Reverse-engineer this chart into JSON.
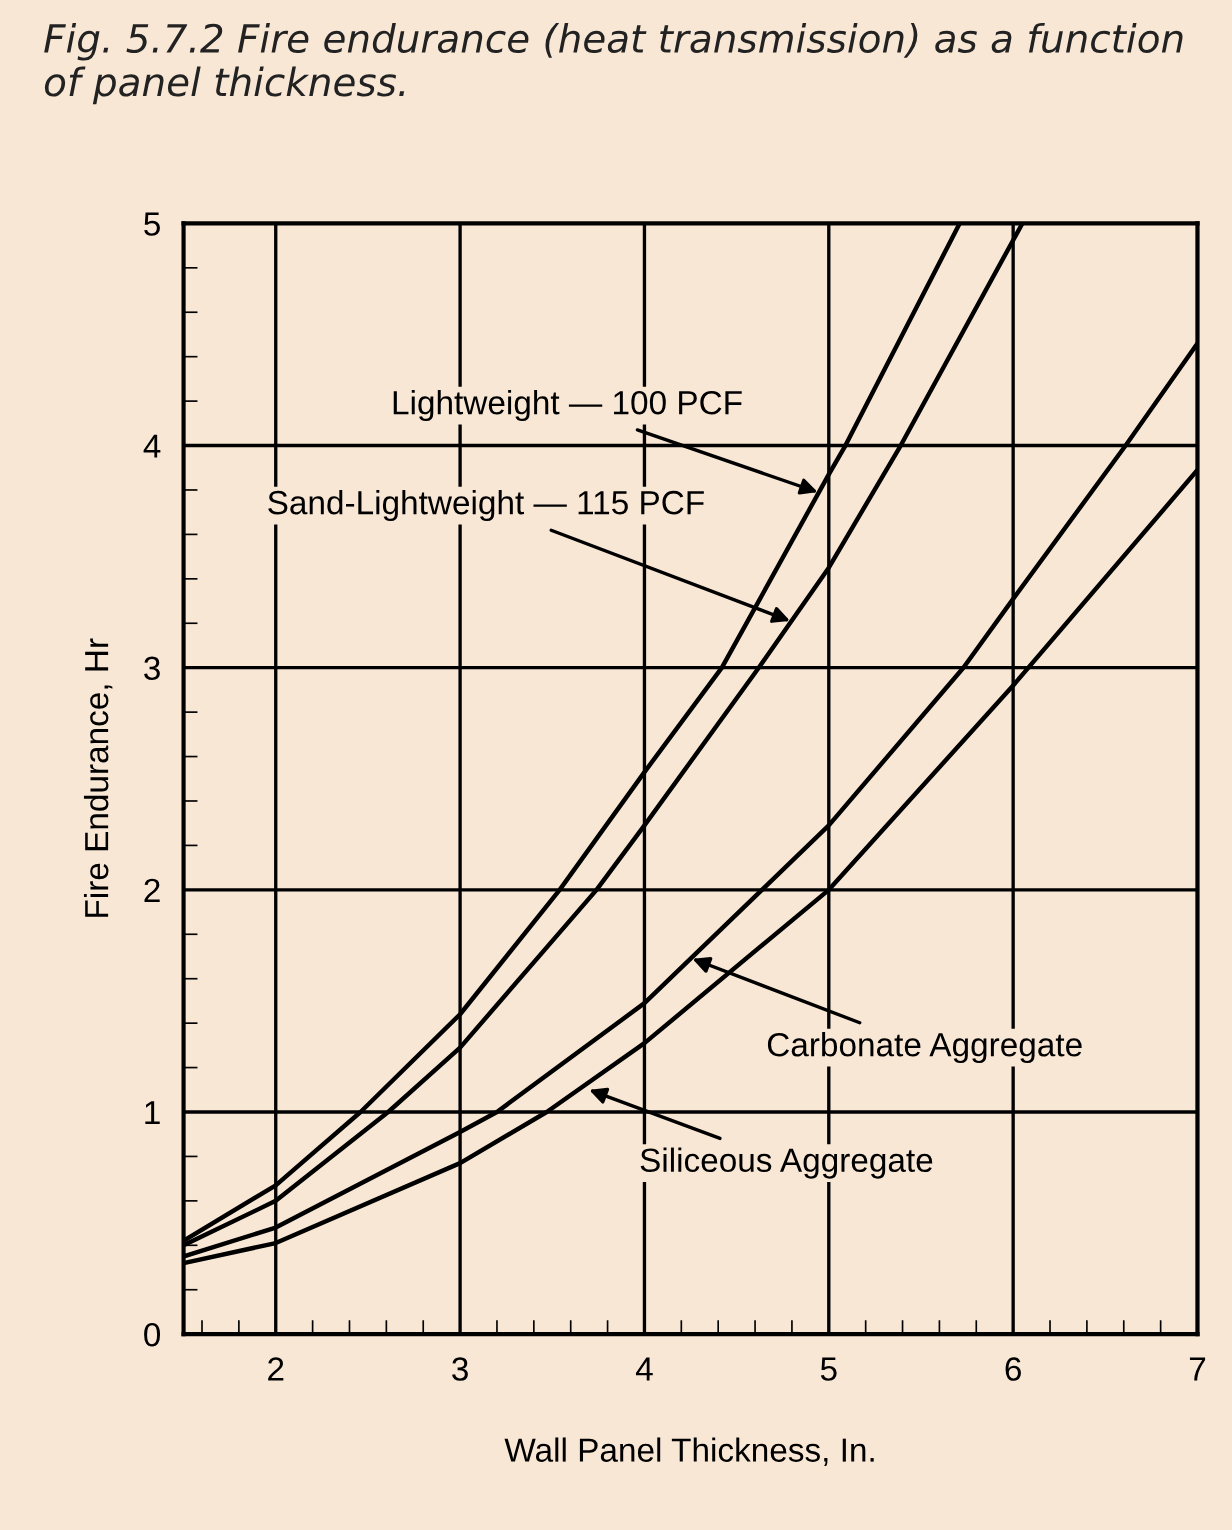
{
  "chart_data": {
    "type": "line",
    "title": "Fig. 5.7.2 Fire endurance (heat transmission) as a function of panel thickness.",
    "xlabel": "Wall Panel Thickness, In.",
    "ylabel": "Fire Endurance, Hr",
    "series": [
      {
        "color": "#000000",
        "x": [
          1.5,
          2,
          2.46,
          3,
          3.54,
          4,
          4.42,
          5,
          5.09,
          5.71
        ],
        "values": [
          0.42,
          0.67,
          1,
          1.44,
          2,
          2.53,
          3,
          3.87,
          4,
          5
        ]
      },
      {
        "color": "#000000",
        "x": [
          1.5,
          2,
          2.61,
          3,
          3.74,
          4,
          4.62,
          5,
          5.39,
          6.05
        ],
        "values": [
          0.4,
          0.6,
          1,
          1.29,
          2,
          2.29,
          3,
          3.45,
          4,
          5
        ]
      },
      {
        "color": "#000000",
        "x": [
          1.5,
          2,
          3,
          3.2,
          4,
          5,
          5.73,
          6,
          6.61,
          7
        ],
        "values": [
          0.35,
          0.48,
          0.91,
          1,
          1.49,
          2.29,
          3,
          3.31,
          4,
          4.46
        ]
      },
      {
        "color": "#000000",
        "x": [
          1.5,
          2,
          3,
          3.47,
          4,
          5,
          6,
          7
        ],
        "values": [
          0.32,
          0.41,
          0.77,
          1,
          1.31,
          2,
          2.92,
          3.89
        ]
      }
    ],
    "annotations": [
      {
        "text": "Lightweight — 100 PCF",
        "x": 4.94,
        "y": 3.79
      },
      {
        "text": "Sand-Lightweight — 115 PCF",
        "x": 4.79,
        "y": 3.21
      },
      {
        "text": "Carbonate Aggregate",
        "x": 4.26,
        "y": 1.69
      },
      {
        "text": "Siliceous Aggregate",
        "x": 3.7,
        "y": 1.1
      }
    ],
    "xlim": [
      1.5,
      7
    ],
    "ylim": [
      0,
      5
    ],
    "xticks": [
      2,
      3,
      4,
      5,
      6,
      7
    ],
    "yticks": [
      0,
      1,
      2,
      3,
      4,
      5
    ],
    "grid": true,
    "marker": "none",
    "line_style": "solid"
  }
}
